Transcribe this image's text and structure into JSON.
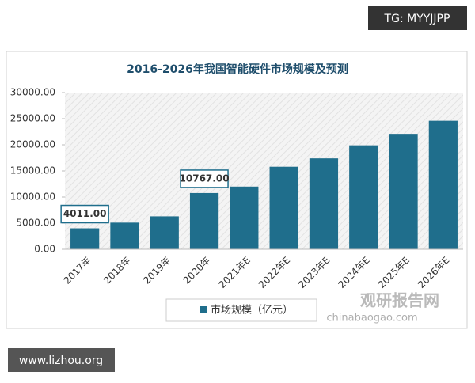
{
  "chart_data": {
    "type": "bar",
    "title": "2016-2026年我国智能硬件市场规模及预测",
    "categories": [
      "2017年",
      "2018年",
      "2019年",
      "2020年",
      "2021年E",
      "2022年E",
      "2023年E",
      "2024年E",
      "2025年E",
      "2026年E"
    ],
    "series": [
      {
        "name": "市场规模（亿元）",
        "color": "#1f6e8c",
        "values": [
          4011,
          5100,
          6300,
          10767,
          12000,
          15800,
          17400,
          19900,
          22100,
          24600
        ],
        "value_labels": [
          "4011.00",
          null,
          null,
          "10767.00",
          null,
          null,
          null,
          null,
          null,
          null
        ]
      }
    ],
    "ylim": [
      0,
      30000
    ],
    "yticks": [
      {
        "value": 0,
        "label": "0.00"
      },
      {
        "value": 5000,
        "label": "5000.00"
      },
      {
        "value": 10000,
        "label": "10000.00"
      },
      {
        "value": 15000,
        "label": "15000.00"
      },
      {
        "value": 20000,
        "label": "20000.00"
      },
      {
        "value": 25000,
        "label": "25000.00"
      },
      {
        "value": 30000,
        "label": "30000.00"
      }
    ],
    "legend": "bottom"
  },
  "watermarks": {
    "top_right": "TG: MYYJJPP",
    "bottom_left": "www.lizhou.org",
    "brand": "观研报告网",
    "brand_url": "chinabaogao.com"
  }
}
